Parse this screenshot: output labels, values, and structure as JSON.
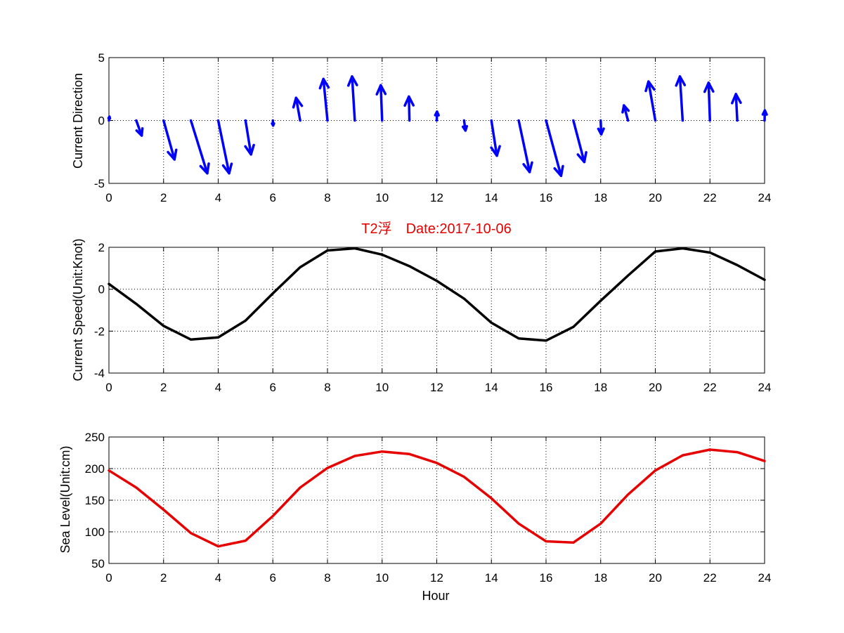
{
  "colors": {
    "background": "#ffffff",
    "grid": "#000000",
    "direction_arrows": "#0000ff",
    "speed_line": "#000000",
    "sea_level_line": "#e60000",
    "title": "#e60000"
  },
  "chart_data": [
    {
      "type": "quiver",
      "ylabel": "Current Direction",
      "xlabel": "",
      "xlim": [
        0,
        24
      ],
      "ylim": [
        -5,
        5
      ],
      "xticks": [
        "0",
        "2",
        "4",
        "6",
        "8",
        "10",
        "12",
        "14",
        "16",
        "18",
        "20",
        "22",
        "24"
      ],
      "yticks": [
        "-5",
        "0",
        "5"
      ],
      "grid": true,
      "series": [
        {
          "color": "#0000ff",
          "x": [
            0,
            1,
            2,
            3,
            4,
            5,
            6,
            7,
            8,
            9,
            10,
            11,
            12,
            13,
            14,
            15,
            16,
            17,
            18,
            19,
            20,
            21,
            22,
            23,
            24
          ],
          "u": [
            0.02,
            0.2,
            0.4,
            0.6,
            0.4,
            0.2,
            0.01,
            -0.15,
            -0.15,
            -0.1,
            -0.05,
            -0.02,
            0.01,
            0.05,
            0.2,
            0.4,
            0.55,
            0.4,
            0.02,
            -0.15,
            -0.25,
            -0.1,
            -0.05,
            -0.05,
            0.01
          ],
          "v": [
            0.3,
            -1.2,
            -3.1,
            -4.2,
            -4.2,
            -2.7,
            -0.4,
            1.8,
            3.3,
            3.5,
            2.8,
            1.9,
            0.7,
            -0.8,
            -2.8,
            -4.1,
            -4.4,
            -3.3,
            -1.1,
            1.2,
            3.1,
            3.5,
            3.0,
            2.1,
            0.8
          ]
        }
      ]
    },
    {
      "type": "line",
      "title": "T2浮　Date:2017-10-06",
      "ylabel": "Current Speed(Unit:Knot)",
      "xlabel": "",
      "xlim": [
        0,
        24
      ],
      "ylim": [
        -4,
        2
      ],
      "xticks": [
        "0",
        "2",
        "4",
        "6",
        "8",
        "10",
        "12",
        "14",
        "16",
        "18",
        "20",
        "22",
        "24"
      ],
      "yticks": [
        "-4",
        "-2",
        "0",
        "2"
      ],
      "grid": true,
      "series": [
        {
          "color": "#000000",
          "x": [
            0,
            1,
            2,
            3,
            4,
            5,
            6,
            7,
            8,
            9,
            10,
            11,
            12,
            13,
            14,
            15,
            16,
            17,
            18,
            19,
            20,
            21,
            22,
            23,
            24
          ],
          "values": [
            0.25,
            -0.7,
            -1.75,
            -2.4,
            -2.3,
            -1.5,
            -0.2,
            1.05,
            1.85,
            1.95,
            1.65,
            1.1,
            0.4,
            -0.45,
            -1.6,
            -2.35,
            -2.45,
            -1.8,
            -0.55,
            0.65,
            1.8,
            1.95,
            1.75,
            1.15,
            0.45
          ]
        }
      ]
    },
    {
      "type": "line",
      "ylabel": "Sea Level(Unit:cm)",
      "xlabel": "Hour",
      "xlim": [
        0,
        24
      ],
      "ylim": [
        50,
        250
      ],
      "xticks": [
        "0",
        "2",
        "4",
        "6",
        "8",
        "10",
        "12",
        "14",
        "16",
        "18",
        "20",
        "22",
        "24"
      ],
      "yticks": [
        "50",
        "100",
        "150",
        "200",
        "250"
      ],
      "grid": true,
      "series": [
        {
          "color": "#e60000",
          "x": [
            0,
            1,
            2,
            3,
            4,
            5,
            6,
            7,
            8,
            9,
            10,
            11,
            12,
            13,
            14,
            15,
            16,
            17,
            18,
            19,
            20,
            21,
            22,
            23,
            24
          ],
          "values": [
            197,
            170,
            135,
            98,
            77,
            86,
            125,
            170,
            201,
            220,
            227,
            223,
            209,
            187,
            153,
            113,
            85,
            83,
            113,
            159,
            197,
            221,
            230,
            226,
            212
          ]
        }
      ]
    }
  ]
}
